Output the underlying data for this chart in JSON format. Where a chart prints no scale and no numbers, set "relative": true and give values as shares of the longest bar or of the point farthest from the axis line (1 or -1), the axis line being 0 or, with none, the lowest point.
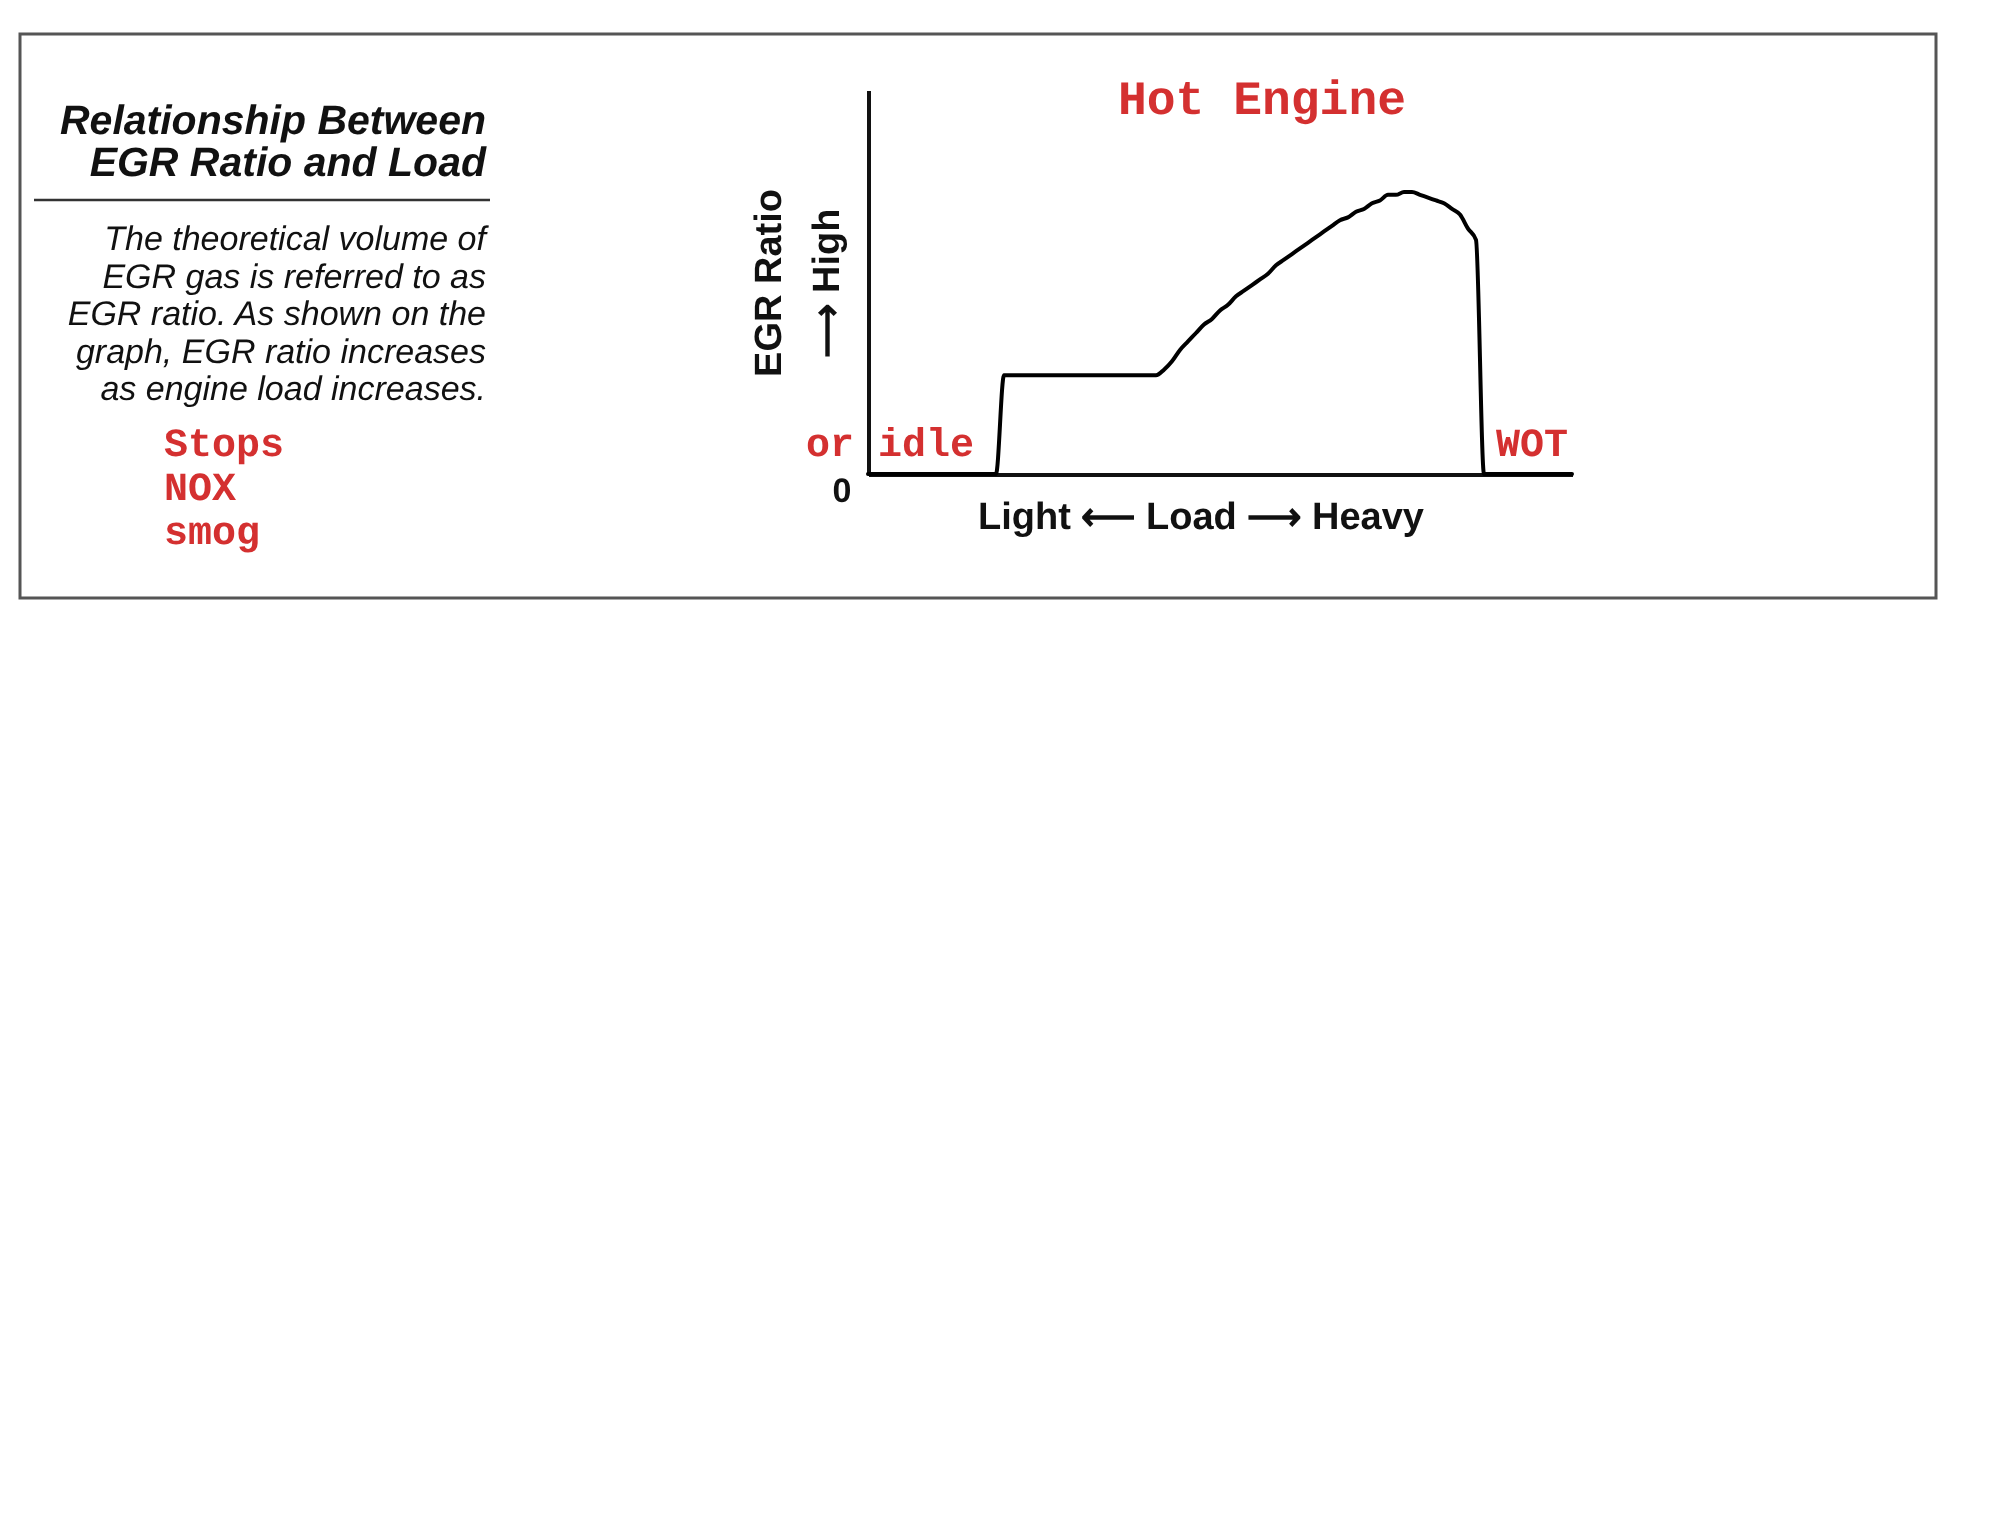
{
  "chart_data": {
    "type": "line",
    "title": "Relationship Between\nEGR Ratio and Load",
    "subtitle": "The theoretical volume of\nEGR gas is referred to as\nEGR ratio. As shown on the\ngraph, EGR ratio increases\nas engine load increases.",
    "xlabel": "Light ⟵ Load ⟶ Heavy",
    "ylabel": "EGR Ratio\n⟶ High",
    "annotations": [
      "Hot Engine",
      "or idle",
      "WOT",
      "0",
      "Stops\nNOX\nsmog"
    ],
    "categories": [
      null,
      null,
      null,
      null,
      null,
      null,
      null,
      null,
      null,
      null,
      null,
      null,
      null,
      null,
      null,
      null,
      null,
      null,
      null,
      null,
      null,
      null,
      null,
      null,
      null,
      null,
      null,
      null,
      null,
      null,
      null,
      null,
      null,
      null,
      null,
      null,
      null,
      null,
      null,
      null,
      null,
      null,
      null,
      null,
      null,
      null,
      null,
      null,
      null,
      null,
      null,
      null,
      null,
      null,
      null,
      null,
      null,
      null,
      null,
      null,
      null,
      null,
      null,
      null,
      null,
      null,
      null,
      null,
      null,
      null,
      null,
      null,
      null,
      null,
      null,
      null,
      null,
      null,
      null,
      null,
      null,
      null,
      null,
      null,
      null,
      null,
      null,
      null,
      null
    ],
    "relative": true,
    "tick_labels": false,
    "series": [
      {
        "color": "#000000",
        "values": [
          0,
          0,
          0,
          0,
          0,
          0,
          0,
          0,
          0,
          0,
          0,
          0,
          0,
          0,
          0,
          0,
          0,
          0.35,
          0.35,
          0.35,
          0.35,
          0.35,
          0.35,
          0.35,
          0.35,
          0.35,
          0.35,
          0.35,
          0.35,
          0.35,
          0.35,
          0.35,
          0.35,
          0.35,
          0.35,
          0.35,
          0.35,
          0.37,
          0.4,
          0.44,
          0.47,
          0.5,
          0.53,
          0.55,
          0.58,
          0.6,
          0.63,
          0.65,
          0.67,
          0.69,
          0.71,
          0.74,
          0.76,
          0.78,
          0.8,
          0.82,
          0.84,
          0.86,
          0.88,
          0.9,
          0.91,
          0.93,
          0.94,
          0.96,
          0.97,
          0.99,
          0.99,
          1,
          1,
          0.99,
          0.98,
          0.97,
          0.96,
          0.94,
          0.92,
          0.87,
          0.83,
          0,
          0,
          0,
          0,
          0,
          0,
          0,
          0,
          0,
          0,
          0,
          0
        ]
      }
    ]
  }
}
